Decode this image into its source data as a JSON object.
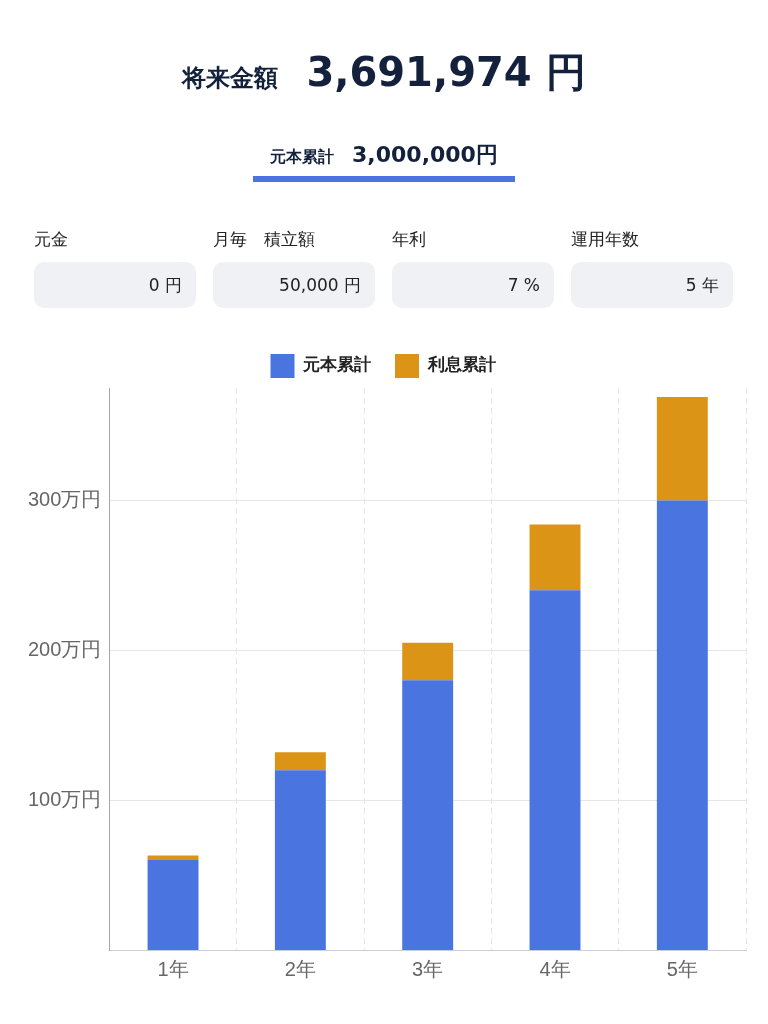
{
  "chart_data": {
    "type": "bar",
    "title": "将来金額 3,691,974 円",
    "subtitle": "元本累計 3,000,000円",
    "annotations": [
      "元金",
      "0 円",
      "月毎　積立額",
      "50,000 円",
      "年利",
      "7 %",
      "運用年数",
      "5 年"
    ],
    "categories": [
      "1年",
      "2年",
      "3年",
      "4年",
      "5年"
    ],
    "series": [
      {
        "name": "元本累計",
        "color": "#4a75e0",
        "values": [
          60,
          120,
          180,
          240,
          300
        ]
      },
      {
        "name": "利息累計",
        "color": "#dc9416",
        "values": [
          3,
          12,
          25,
          44,
          69
        ]
      }
    ],
    "stacked": true,
    "ylim": [
      0,
      375
    ],
    "yticks": [
      {
        "value": 100,
        "label": "100万円"
      },
      {
        "value": 200,
        "label": "200万円"
      },
      {
        "value": 300,
        "label": "300万円"
      }
    ],
    "grid": true,
    "legend": "top"
  }
}
